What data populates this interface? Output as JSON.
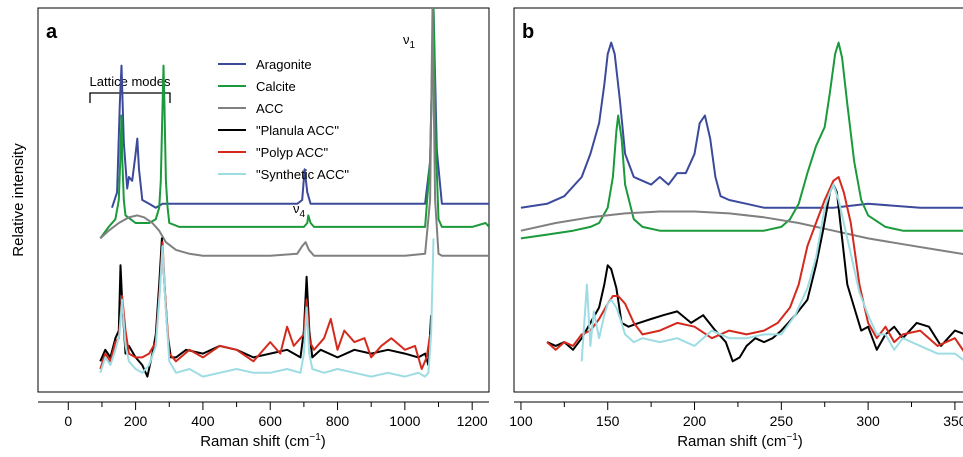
{
  "chart_data": [
    {
      "panel": "a",
      "type": "line",
      "xlabel": "Raman shift (cm",
      "xlabel_sup": "−1",
      "xlabel_end": ")",
      "ylabel": "Relative intensity",
      "xlim": [
        -90,
        1250
      ],
      "ylim": [
        0,
        100
      ],
      "x_ticks": [
        "0",
        "200",
        "400",
        "600",
        "800",
        "1000",
        "1200"
      ],
      "annotations": {
        "lattice": "Lattice modes",
        "v1_main": "ν",
        "v1_sub": "1",
        "v4_main": "ν",
        "v4_sub": "4"
      },
      "legend": {
        "placement": "top-center",
        "entries": [
          {
            "label": "Aragonite",
            "color": "#3c4a9c"
          },
          {
            "label": "Calcite",
            "color": "#1a9a3a"
          },
          {
            "label": "ACC",
            "color": "#808080"
          },
          {
            "label": "\"Planula ACC\"",
            "color": "#000000"
          },
          {
            "label": "\"Polyp ACC\"",
            "color": "#d42a1e"
          },
          {
            "label": "\"Synthetic ACC\"",
            "color": "#9edce3"
          }
        ]
      },
      "series": [
        {
          "key": "aragonite",
          "color": "#3c4a9c",
          "x": [
            130,
            145,
            153,
            158,
            165,
            175,
            180,
            190,
            200,
            205,
            210,
            220,
            240,
            260,
            280,
            300,
            400,
            600,
            680,
            695,
            702,
            710,
            720,
            800,
            1000,
            1060,
            1075,
            1085,
            1095,
            1110,
            1250
          ],
          "y": [
            48,
            52,
            75,
            85,
            65,
            53,
            56,
            55,
            62,
            66,
            58,
            50,
            49,
            48,
            49,
            49,
            49,
            49,
            49,
            50,
            58,
            52,
            49,
            49,
            49,
            49,
            60,
            100,
            63,
            49,
            49
          ]
        },
        {
          "key": "calcite",
          "color": "#1a9a3a",
          "x": [
            95,
            120,
            140,
            150,
            155,
            158,
            160,
            165,
            170,
            200,
            240,
            260,
            270,
            275,
            280,
            283,
            286,
            290,
            295,
            300,
            330,
            400,
            600,
            690,
            700,
            710,
            713,
            720,
            730,
            800,
            1000,
            1060,
            1075,
            1085,
            1092,
            1100,
            1110,
            1200,
            1240,
            1250
          ],
          "y": [
            40,
            43,
            45,
            50,
            62,
            72,
            62,
            50,
            46,
            44,
            44,
            45,
            48,
            55,
            74,
            85,
            74,
            55,
            48,
            44,
            43,
            43,
            43,
            43,
            43,
            44,
            46,
            44,
            43,
            43,
            43,
            43,
            60,
            100,
            65,
            45,
            43,
            43,
            44,
            43
          ]
        },
        {
          "key": "acc",
          "color": "#808080",
          "x": [
            95,
            120,
            150,
            180,
            205,
            225,
            250,
            270,
            290,
            320,
            360,
            400,
            500,
            600,
            680,
            695,
            705,
            715,
            730,
            800,
            1000,
            1060,
            1075,
            1082,
            1090,
            1100,
            1110,
            1150,
            1250
          ],
          "y": [
            40,
            42,
            44,
            45.5,
            46,
            45.5,
            44,
            42,
            39,
            37,
            36,
            35.5,
            35.5,
            35.5,
            36,
            38,
            39,
            37,
            35.5,
            35.5,
            35.5,
            36,
            50,
            100,
            50,
            36,
            35.5,
            35.5,
            35.5
          ]
        },
        {
          "key": "planula",
          "color": "#000000",
          "x": [
            95,
            110,
            125,
            140,
            150,
            155,
            160,
            170,
            180,
            200,
            220,
            235,
            250,
            260,
            270,
            278,
            285,
            295,
            305,
            320,
            350,
            400,
            450,
            500,
            550,
            600,
            650,
            690,
            700,
            708,
            716,
            725,
            750,
            800,
            850,
            900,
            950,
            1000,
            1040,
            1060,
            1070,
            1078
          ],
          "y": [
            8,
            11,
            9,
            14,
            16,
            33,
            24,
            10,
            12,
            9,
            7,
            4,
            10,
            15,
            28,
            40,
            29,
            15,
            9,
            9,
            11,
            10,
            12,
            11,
            9,
            10,
            11,
            9,
            16,
            30,
            16,
            9,
            11,
            9,
            11,
            10,
            11,
            10,
            9,
            10,
            7,
            20
          ]
        },
        {
          "key": "polyp",
          "color": "#d42a1e",
          "x": [
            95,
            110,
            125,
            140,
            150,
            160,
            170,
            180,
            200,
            220,
            240,
            260,
            272,
            280,
            288,
            300,
            320,
            360,
            400,
            450,
            500,
            550,
            600,
            630,
            650,
            670,
            690,
            700,
            708,
            718,
            730,
            760,
            780,
            800,
            820,
            850,
            880,
            900,
            930,
            960,
            1000,
            1030,
            1050,
            1065,
            1075
          ],
          "y": [
            6,
            10,
            8,
            13,
            14,
            25,
            16,
            10,
            9,
            9,
            10,
            13,
            27,
            39,
            25,
            10,
            8,
            11,
            9,
            12,
            11,
            8,
            13,
            10,
            17,
            12,
            14,
            15,
            24,
            13,
            11,
            14,
            19,
            11,
            16,
            13,
            14,
            9,
            12,
            14,
            11,
            12,
            6,
            9,
            15
          ]
        },
        {
          "key": "synthetic",
          "color": "#9edce3",
          "x": [
            95,
            110,
            125,
            140,
            152,
            160,
            170,
            180,
            200,
            220,
            240,
            260,
            272,
            280,
            288,
            300,
            320,
            360,
            400,
            450,
            500,
            550,
            600,
            650,
            690,
            700,
            708,
            716,
            725,
            760,
            800,
            850,
            900,
            950,
            1000,
            1040,
            1060,
            1070,
            1078,
            1085
          ],
          "y": [
            5,
            9,
            7,
            11,
            15,
            24,
            12,
            8,
            6,
            5,
            7,
            12,
            26,
            38,
            24,
            8,
            5,
            6,
            4,
            5,
            6,
            5,
            5,
            6,
            5,
            10,
            22,
            10,
            6,
            5,
            6,
            5,
            4,
            5,
            4,
            5,
            4,
            5,
            15,
            40
          ]
        }
      ]
    },
    {
      "panel": "b",
      "type": "line",
      "xlabel": "Raman shift (cm",
      "xlabel_sup": "−1",
      "xlabel_end": ")",
      "xlim": [
        96,
        361
      ],
      "ylim": [
        0,
        100
      ],
      "x_ticks": [
        "100",
        "150",
        "200",
        "250",
        "300",
        "350"
      ],
      "series": [
        {
          "key": "aragonite",
          "color": "#3c4a9c",
          "x": [
            100,
            115,
            125,
            135,
            140,
            145,
            148,
            150,
            152,
            154,
            157,
            160,
            165,
            170,
            175,
            180,
            185,
            190,
            195,
            200,
            203,
            206,
            209,
            212,
            215,
            220,
            230,
            240,
            260,
            280,
            300,
            330,
            361
          ],
          "y": [
            48,
            49,
            51,
            56,
            62,
            70,
            80,
            88,
            91,
            88,
            76,
            62,
            56,
            55,
            54,
            56,
            54,
            57,
            57,
            62,
            70,
            72,
            66,
            56,
            51,
            50,
            49,
            48,
            48,
            48,
            49,
            48,
            48
          ]
        },
        {
          "key": "calcite",
          "color": "#1a9a3a",
          "x": [
            100,
            115,
            130,
            140,
            145,
            150,
            153,
            155,
            156,
            158,
            160,
            165,
            170,
            180,
            200,
            220,
            240,
            250,
            255,
            260,
            265,
            270,
            275,
            278,
            281,
            283,
            285,
            288,
            292,
            296,
            300,
            310,
            320,
            340,
            361
          ],
          "y": [
            40,
            41,
            42,
            43,
            44,
            48,
            56,
            68,
            72,
            66,
            54,
            45,
            43,
            42,
            42,
            42,
            42,
            43,
            45,
            49,
            57,
            64,
            69,
            78,
            88,
            91,
            87,
            75,
            60,
            50,
            46,
            43,
            42,
            42,
            42
          ]
        },
        {
          "key": "acc",
          "color": "#808080",
          "x": [
            100,
            120,
            140,
            160,
            180,
            200,
            220,
            240,
            260,
            280,
            300,
            320,
            340,
            361
          ],
          "y": [
            42,
            44,
            45.5,
            46.5,
            47,
            47,
            46.5,
            45.5,
            44,
            42,
            40,
            38.5,
            37,
            35.5
          ]
        },
        {
          "key": "planula",
          "color": "#000000",
          "x": [
            115,
            120,
            125,
            130,
            135,
            140,
            145,
            148,
            150,
            152,
            155,
            158,
            162,
            168,
            175,
            182,
            190,
            198,
            205,
            212,
            218,
            222,
            226,
            230,
            235,
            240,
            245,
            250,
            258,
            265,
            270,
            274,
            278,
            280,
            282,
            285,
            288,
            292,
            296,
            300,
            305,
            310,
            315,
            320,
            328,
            335,
            342,
            350,
            356,
            361
          ],
          "y": [
            13,
            12,
            13,
            11,
            14,
            18,
            22,
            28,
            33,
            32,
            27,
            18,
            17,
            18,
            19,
            20,
            21,
            18,
            20,
            16,
            13,
            8,
            9,
            12,
            14,
            13,
            14,
            16,
            20,
            24,
            33,
            42,
            52,
            54,
            52,
            40,
            28,
            22,
            16,
            17,
            11,
            15,
            17,
            14,
            18,
            17,
            12,
            16,
            15,
            14
          ]
        },
        {
          "key": "polyp",
          "color": "#d42a1e",
          "x": [
            115,
            120,
            125,
            130,
            135,
            140,
            145,
            150,
            153,
            156,
            160,
            165,
            170,
            180,
            190,
            200,
            210,
            220,
            230,
            240,
            248,
            255,
            260,
            265,
            270,
            275,
            280,
            283,
            286,
            290,
            295,
            300,
            305,
            310,
            315,
            320,
            330,
            340,
            350,
            356,
            361
          ],
          "y": [
            13,
            11,
            13,
            12,
            15,
            16,
            19,
            23,
            25,
            25,
            23,
            18,
            15,
            16,
            18,
            17,
            14,
            16,
            15,
            16,
            18,
            22,
            28,
            38,
            44,
            50,
            55,
            56,
            52,
            44,
            28,
            18,
            14,
            17,
            13,
            15,
            16,
            12,
            14,
            10,
            11
          ]
        },
        {
          "key": "synthetic",
          "color": "#9edce3",
          "x": [
            135,
            138,
            140,
            142,
            145,
            148,
            150,
            152,
            155,
            158,
            160,
            165,
            170,
            180,
            190,
            200,
            210,
            220,
            230,
            240,
            250,
            258,
            265,
            270,
            275,
            278,
            280,
            283,
            286,
            290,
            295,
            300,
            305,
            310,
            315,
            320,
            330,
            340,
            350,
            356,
            361
          ],
          "y": [
            8,
            28,
            12,
            21,
            14,
            20,
            23,
            24,
            22,
            18,
            15,
            13,
            14,
            13,
            14,
            12,
            16,
            14,
            14,
            15,
            15,
            20,
            27,
            35,
            48,
            52,
            54,
            50,
            44,
            36,
            26,
            20,
            15,
            15,
            11,
            14,
            12,
            10,
            10,
            8,
            9
          ]
        }
      ]
    }
  ]
}
